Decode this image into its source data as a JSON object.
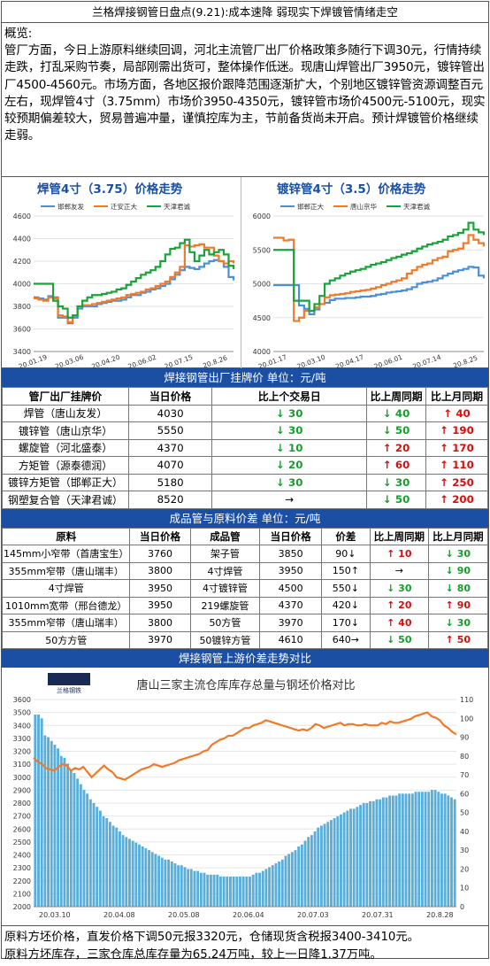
{
  "title": "兰格焊接钢管日盘点(9.21):成本速降  弱现实下焊镀管情绪走空",
  "overview": {
    "heading": "概览:",
    "text": "管厂方面，今日上游原料继续回调，河北主流管厂出厂价格政策多随行下调30元，行情持续走跌，打乱采购节奏，局部刚需出货可，整体操作低迷。现唐山焊管出厂3950元，镀锌管出厂4500-4560元。市场方面，各地区报价跟降范围逐渐扩大，个别地区镀锌管资源调整百元左右，现焊管4寸（3.75mm）市场价3950-4350元，镀锌管市场价4500元-5100元，现实较预期偏差较大，贸易普遍冲量，谨慎控库为主，节前备货尚未开启。预计焊镀管价格继续走弱。"
  },
  "chart_data": [
    {
      "type": "line",
      "title": "焊管4寸（3.75）价格走势",
      "yticks": [
        3400,
        3600,
        3800,
        4000,
        4200,
        4400,
        4600
      ],
      "ylim": [
        3400,
        4600
      ],
      "xticks": [
        "20.01.19",
        "20.03.06",
        "20.04.20",
        "20.06.02",
        "20.07.15",
        "20.8.26"
      ],
      "grid": true,
      "legend": "top",
      "series": [
        {
          "name": "邯郸友发",
          "color": "#4a90d9",
          "values": [
            3880,
            3870,
            3860,
            3890,
            3880,
            3700,
            3700,
            3650,
            3700,
            3780,
            3800,
            3800,
            3800,
            3820,
            3830,
            3840,
            3850,
            3850,
            3860,
            3880,
            3900,
            3900,
            3920,
            3930,
            3950,
            3960,
            3980,
            4000,
            4040,
            4080,
            4120,
            4150,
            4140,
            4130,
            4150,
            4180,
            4200,
            4210,
            4200,
            4150,
            4060,
            4030
          ]
        },
        {
          "name": "迁安正大",
          "color": "#f07a2a",
          "values": [
            3870,
            3860,
            3850,
            3880,
            3870,
            3720,
            3710,
            3660,
            3720,
            3800,
            3810,
            3810,
            3820,
            3830,
            3840,
            3850,
            3860,
            3870,
            3880,
            3900,
            3910,
            3920,
            3930,
            3950,
            3960,
            3980,
            4000,
            4020,
            4060,
            4100,
            4150,
            4340,
            4330,
            4340,
            4350,
            4320,
            4320,
            4250,
            4200,
            4180,
            4200,
            4180
          ]
        },
        {
          "name": "天津君诚",
          "color": "#1aa33a",
          "values": [
            4000,
            4000,
            4000,
            4000,
            3850,
            3800,
            3780,
            3700,
            3720,
            3800,
            3850,
            3880,
            3900,
            3900,
            3910,
            3920,
            3930,
            3950,
            3960,
            3990,
            4020,
            4050,
            4080,
            4100,
            4120,
            4150,
            4200,
            4260,
            4310,
            4320,
            4360,
            4390,
            4280,
            4200,
            4250,
            4300,
            4260,
            4280,
            4300,
            4260,
            4160,
            4130
          ]
        }
      ]
    },
    {
      "type": "line",
      "title": "镀锌管4寸（3.5）价格走势",
      "yticks": [
        4000,
        4500,
        5000,
        5500,
        6000
      ],
      "ylim": [
        4000,
        6000
      ],
      "xticks": [
        "20.01.17",
        "20.03.10",
        "20.04.17",
        "20.06.01",
        "20.07.14",
        "20.8.25"
      ],
      "grid": true,
      "legend": "top",
      "series": [
        {
          "name": "邯郸正大",
          "color": "#4a90d9",
          "values": [
            4980,
            4980,
            4980,
            4980,
            4980,
            4680,
            4630,
            4550,
            4620,
            4700,
            4720,
            4760,
            4780,
            4780,
            4790,
            4790,
            4800,
            4810,
            4810,
            4820,
            4840,
            4850,
            4870,
            4880,
            4890,
            4900,
            4920,
            4950,
            5000,
            5020,
            5030,
            5050,
            5080,
            5120,
            5150,
            5180,
            5200,
            5220,
            5250,
            5240,
            5120,
            5080
          ]
        },
        {
          "name": "唐山京华",
          "color": "#f07a2a",
          "values": [
            5680,
            5680,
            5640,
            5650,
            4450,
            4500,
            4600,
            4600,
            4650,
            4700,
            4800,
            4830,
            4840,
            4850,
            4860,
            4880,
            4890,
            4900,
            4910,
            4930,
            4950,
            4980,
            5000,
            5030,
            5050,
            5080,
            5150,
            5200,
            5250,
            5280,
            5300,
            5350,
            5380,
            5400,
            5480,
            5500,
            5520,
            5600,
            5720,
            5650,
            5600,
            5550
          ]
        },
        {
          "name": "天津君诚",
          "color": "#1aa33a",
          "values": [
            5500,
            5500,
            5500,
            5500,
            4750,
            4750,
            4750,
            4600,
            4700,
            4820,
            5000,
            5050,
            5080,
            5120,
            5150,
            5180,
            5200,
            5220,
            5250,
            5280,
            5300,
            5320,
            5350,
            5380,
            5400,
            5430,
            5450,
            5480,
            5520,
            5550,
            5580,
            5600,
            5620,
            5650,
            5700,
            5720,
            5750,
            5800,
            5900,
            5800,
            5760,
            5720
          ]
        }
      ]
    },
    {
      "type": "bar-line",
      "title": "唐山三家主流仓库库存总量与钢坯价格对比",
      "yticks_left": [
        2000,
        2100,
        2200,
        2300,
        2400,
        2500,
        2600,
        2700,
        2800,
        2900,
        3000,
        3100,
        3200,
        3300,
        3400,
        3500,
        3600
      ],
      "ylim_left": [
        2000,
        3600
      ],
      "yticks_right": [
        0,
        10,
        20,
        30,
        40,
        50,
        60,
        70,
        80,
        90,
        100,
        110
      ],
      "ylim_right": [
        0,
        110
      ],
      "xticks": [
        "20.03.10",
        "20.04.08",
        "20.05.08",
        "20.06.04",
        "20.07.03",
        "20.07.31",
        "20.8.28"
      ],
      "grid": true,
      "bar_values": [
        102,
        102,
        100,
        91,
        90,
        88,
        86,
        84,
        80,
        79,
        76,
        73,
        71,
        68,
        65,
        62,
        60,
        57,
        55,
        53,
        51,
        48,
        47,
        45,
        43,
        42,
        40,
        38,
        37,
        36,
        35,
        34,
        33,
        32,
        31,
        30,
        29,
        28,
        27,
        26,
        25,
        25,
        24,
        23,
        22,
        22,
        21,
        20,
        20,
        19,
        19,
        18,
        18,
        17,
        17,
        17,
        17,
        16,
        16,
        16,
        16,
        16,
        16,
        16,
        16,
        16,
        16,
        17,
        18,
        18,
        19,
        20,
        21,
        22,
        23,
        24,
        25,
        27,
        28,
        29,
        30,
        32,
        33,
        35,
        37,
        38,
        40,
        42,
        43,
        44,
        45,
        46,
        47,
        48,
        49,
        50,
        51,
        52,
        52,
        53,
        54,
        55,
        55,
        56,
        56,
        57,
        57,
        58,
        58,
        59,
        59,
        59,
        60,
        60,
        60,
        60,
        60,
        61,
        61,
        61,
        61,
        61,
        62,
        62,
        61,
        60,
        60,
        59,
        58,
        57
      ],
      "line_values": [
        3150,
        3120,
        3100,
        3070,
        3060,
        3050,
        3080,
        3100,
        3090,
        3050,
        3070,
        3060,
        3080,
        3040,
        3000,
        3030,
        3060,
        3090,
        3060,
        3040,
        3000,
        2990,
        2980,
        3000,
        3020,
        3040,
        3060,
        3070,
        3080,
        3100,
        3090,
        3080,
        3090,
        3100,
        3110,
        3130,
        3140,
        3150,
        3160,
        3170,
        3180,
        3200,
        3210,
        3250,
        3270,
        3290,
        3300,
        3320,
        3320,
        3340,
        3360,
        3380,
        3380,
        3400,
        3410,
        3420,
        3440,
        3430,
        3420,
        3410,
        3400,
        3390,
        3380,
        3370,
        3360,
        3370,
        3360,
        3380,
        3410,
        3400,
        3380,
        3390,
        3400,
        3410,
        3420,
        3400,
        3410,
        3410,
        3400,
        3400,
        3410,
        3400,
        3400,
        3400,
        3420,
        3410,
        3430,
        3420,
        3420,
        3430,
        3440,
        3450,
        3470,
        3480,
        3490,
        3500,
        3470,
        3460,
        3440,
        3400,
        3380,
        3350,
        3330
      ]
    }
  ],
  "section1": {
    "header": "焊接钢管出厂挂牌价    单位：元/吨",
    "columns": [
      "管厂出厂挂牌价",
      "当日价格",
      "比上个交易日",
      "比上周同期",
      "比上月同期"
    ],
    "rows": [
      {
        "name": "焊管（唐山友发）",
        "price": "4030",
        "d1": "30",
        "d1dir": "dn",
        "w": "40",
        "wdir": "dn",
        "m": "40",
        "mdir": "up"
      },
      {
        "name": "镀锌管（唐山京华）",
        "price": "5550",
        "d1": "30",
        "d1dir": "dn",
        "w": "50",
        "wdir": "dn",
        "m": "190",
        "mdir": "up"
      },
      {
        "name": "螺旋管（河北盛泰）",
        "price": "4370",
        "d1": "10",
        "d1dir": "dn",
        "w": "20",
        "wdir": "up",
        "m": "170",
        "mdir": "up"
      },
      {
        "name": "方矩管（源泰德润）",
        "price": "4070",
        "d1": "20",
        "d1dir": "dn",
        "w": "60",
        "wdir": "up",
        "m": "110",
        "mdir": "up"
      },
      {
        "name": "镀锌方矩管（邯郸正大）",
        "price": "5180",
        "d1": "30",
        "d1dir": "dn",
        "w": "30",
        "wdir": "dn",
        "m": "250",
        "mdir": "up"
      },
      {
        "name": "钢塑复合管（天津君诚）",
        "price": "8520",
        "d1": "→",
        "d1dir": "flat",
        "w": "50",
        "wdir": "dn",
        "m": "200",
        "mdir": "up"
      }
    ]
  },
  "section2": {
    "header": "成品管与原料价差    单位：元/吨",
    "columns": [
      "原料",
      "当日价格",
      "成品管",
      "当日价格",
      "价差",
      "比上周同期",
      "比上月同期"
    ],
    "rows": [
      {
        "raw": "145mm小窄带（首唐宝生）",
        "rp": "3760",
        "prod": "架子管",
        "pp": "3850",
        "diff": "90",
        "ddir": "dn",
        "w": "10",
        "wdir": "up",
        "m": "30",
        "mdir": "dn"
      },
      {
        "raw": "355mm窄带（唐山瑞丰）",
        "rp": "3800",
        "prod": "4寸焊管",
        "pp": "3950",
        "diff": "150",
        "ddir": "up",
        "w": "→",
        "wdir": "flat",
        "m": "90",
        "mdir": "dn"
      },
      {
        "raw": "4寸焊管",
        "rp": "3950",
        "prod": "4寸镀锌管",
        "pp": "4500",
        "diff": "550",
        "ddir": "dn",
        "w": "30",
        "wdir": "dn",
        "m": "80",
        "mdir": "dn"
      },
      {
        "raw": "1010mm宽带（邢台德龙）",
        "rp": "3950",
        "prod": "219螺旋管",
        "pp": "4370",
        "diff": "420",
        "ddir": "dn",
        "w": "20",
        "wdir": "up",
        "m": "90",
        "mdir": "up"
      },
      {
        "raw": "355mm窄带（唐山瑞丰）",
        "rp": "3800",
        "prod": "50方管",
        "pp": "3970",
        "diff": "170",
        "ddir": "dn",
        "w": "40",
        "wdir": "up",
        "m": "30",
        "mdir": "dn"
      },
      {
        "raw": "50方方管",
        "rp": "3970",
        "prod": "50镀锌方管",
        "pp": "4610",
        "diff": "640",
        "ddir": "flat",
        "w": "50",
        "wdir": "dn",
        "m": "50",
        "mdir": "up"
      }
    ]
  },
  "section3": {
    "header": "焊接钢管上游价差走势对比",
    "logo_text": "兰格钢铁"
  },
  "footer": {
    "line1": "原料方坯价格，直发价格下调50元报3320元，仓储现货含税报3400-3410元。",
    "line2": "原料方坯库存，三家仓库总库存量为65.24万吨，较上一日降1.37万吨。"
  },
  "colors": {
    "header_blue": "#1a4fa3",
    "up": "#d11010",
    "down": "#159e2a",
    "orange": "#f07a2a",
    "bar_blue": "#5aaed8"
  }
}
